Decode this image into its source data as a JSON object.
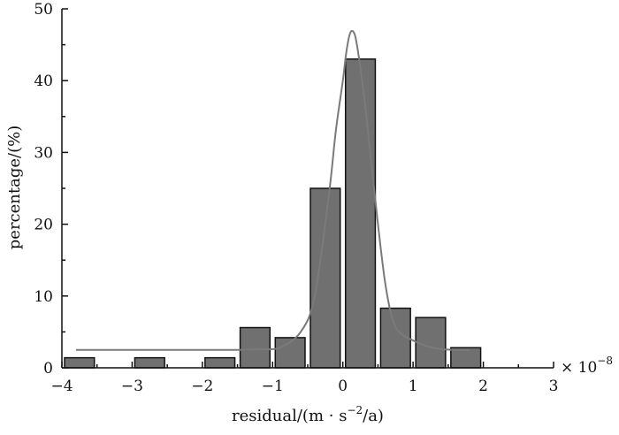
{
  "chart_data": {
    "type": "bar",
    "title": "",
    "xlabel_parts": {
      "pre": "residual/(m · s",
      "sup": "−2",
      "post": "/a)"
    },
    "ylabel": "percentage/(%)",
    "x_multiplier": {
      "base": "× 10",
      "exp": "−8"
    },
    "xlim": [
      -4,
      3
    ],
    "ylim": [
      0,
      50
    ],
    "x_ticks": [
      -4,
      -3,
      -2,
      -1,
      0,
      1,
      2,
      3
    ],
    "x_tick_labels": [
      "−4",
      "−3",
      "−2",
      "−1",
      "0",
      "1",
      "2",
      "3"
    ],
    "y_ticks": [
      0,
      10,
      20,
      30,
      40,
      50
    ],
    "y_tick_labels": [
      "0",
      "10",
      "20",
      "30",
      "40",
      "50"
    ],
    "bin_width": 0.5,
    "bins": [
      {
        "center": -3.75,
        "value": 1.4
      },
      {
        "center": -2.75,
        "value": 1.4
      },
      {
        "center": -1.75,
        "value": 1.4
      },
      {
        "center": -1.25,
        "value": 5.6
      },
      {
        "center": -0.75,
        "value": 4.2
      },
      {
        "center": -0.25,
        "value": 25.0
      },
      {
        "center": 0.25,
        "value": 43.0
      },
      {
        "center": 0.75,
        "value": 8.3
      },
      {
        "center": 1.25,
        "value": 7.0
      },
      {
        "center": 1.75,
        "value": 2.8
      }
    ],
    "fit_curve": [
      [
        -3.8,
        2.5
      ],
      [
        -3.0,
        2.5
      ],
      [
        -2.0,
        2.5
      ],
      [
        -1.5,
        2.5
      ],
      [
        -1.2,
        2.6
      ],
      [
        -0.9,
        2.8
      ],
      [
        -0.6,
        5.0
      ],
      [
        -0.4,
        10.0
      ],
      [
        -0.2,
        24.0
      ],
      [
        -0.1,
        33.0
      ],
      [
        0.0,
        40.0
      ],
      [
        0.05,
        44.0
      ],
      [
        0.1,
        46.5
      ],
      [
        0.15,
        46.8
      ],
      [
        0.2,
        45.0
      ],
      [
        0.3,
        38.0
      ],
      [
        0.4,
        29.0
      ],
      [
        0.5,
        20.0
      ],
      [
        0.6,
        12.0
      ],
      [
        0.7,
        7.0
      ],
      [
        0.8,
        5.0
      ],
      [
        1.0,
        3.8
      ],
      [
        1.2,
        3.0
      ],
      [
        1.4,
        2.6
      ],
      [
        1.6,
        2.5
      ],
      [
        1.8,
        2.5
      ]
    ],
    "grid": false,
    "legend": "none"
  }
}
